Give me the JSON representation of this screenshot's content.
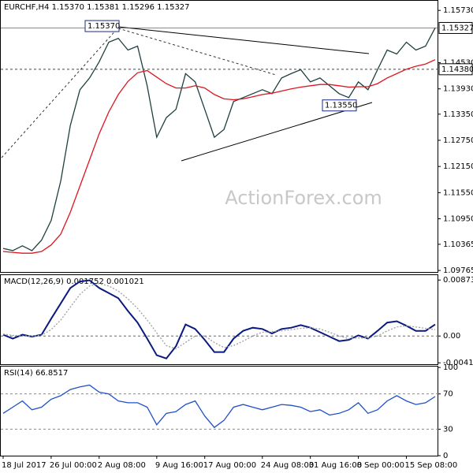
{
  "chart_data": [
    {
      "type": "line",
      "title": "EURCHF,H4 1.15370 1.15381 1.15296 1.15327",
      "watermark": "ActionForex.com",
      "ylim": [
        1.0973,
        1.1595
      ],
      "yticks": [
        {
          "value": 1.1573,
          "label": "1.15730"
        },
        {
          "value": 1.1453,
          "label": "1.14530"
        },
        {
          "value": 1.1393,
          "label": "1.13930"
        },
        {
          "value": 1.1335,
          "label": "1.13350"
        },
        {
          "value": 1.1275,
          "label": "1.12750"
        },
        {
          "value": 1.1215,
          "label": "1.12150"
        },
        {
          "value": 1.1155,
          "label": "1.11550"
        },
        {
          "value": 1.1095,
          "label": "1.10950"
        },
        {
          "value": 1.10365,
          "label": "1.10365"
        },
        {
          "value": 1.09765,
          "label": "1.09765"
        }
      ],
      "price_labels": [
        {
          "value": 1.15327,
          "label": "1.15327"
        },
        {
          "value": 1.1438,
          "label": "1.14380"
        }
      ],
      "annotations": [
        {
          "value": 1.1537,
          "label": "1.15370"
        },
        {
          "value": 1.1355,
          "label": "1.13550"
        }
      ],
      "series": [
        {
          "color": "#1f3f3f",
          "values": [
            1.1027,
            1.1022,
            1.1033,
            1.1022,
            1.1046,
            1.1091,
            1.1182,
            1.1309,
            1.1391,
            1.1418,
            1.1455,
            1.15,
            1.1509,
            1.1482,
            1.1491,
            1.14,
            1.1282,
            1.1327,
            1.1346,
            1.1428,
            1.1409,
            1.1346,
            1.1282,
            1.13,
            1.1364,
            1.1373,
            1.1382,
            1.1391,
            1.1382,
            1.1418,
            1.1428,
            1.1437,
            1.1409,
            1.1418,
            1.14,
            1.1382,
            1.1373,
            1.1409,
            1.1391,
            1.1437,
            1.1482,
            1.1473,
            1.15,
            1.1482,
            1.1491,
            1.1533
          ]
        },
        {
          "color": "#e0141e",
          "values": [
            1.102,
            1.1018,
            1.1016,
            1.1016,
            1.102,
            1.1035,
            1.106,
            1.111,
            1.117,
            1.123,
            1.129,
            1.134,
            1.138,
            1.141,
            1.143,
            1.1435,
            1.142,
            1.1405,
            1.1395,
            1.1395,
            1.14,
            1.1395,
            1.138,
            1.137,
            1.1368,
            1.137,
            1.1375,
            1.138,
            1.1383,
            1.1388,
            1.1393,
            1.1397,
            1.14,
            1.1403,
            1.1403,
            1.14,
            1.1397,
            1.1398,
            1.1398,
            1.1405,
            1.1418,
            1.1428,
            1.1438,
            1.1445,
            1.145,
            1.146
          ]
        }
      ]
    },
    {
      "type": "line",
      "title": "MACD(12,26,9) 0.001752 0.001021",
      "ylim": [
        -0.0044,
        0.0095
      ],
      "yticks": [
        0.008732,
        {
          "value": 0,
          "label": "0.00"
        },
        -0.004184
      ],
      "zero_line": 0,
      "series": [
        {
          "color": "#0a1a80",
          "values": [
            0.0002,
            -0.0004,
            0.0002,
            -0.0001,
            0.0002,
            0.0027,
            0.0051,
            0.0075,
            0.0085,
            0.0087,
            0.0075,
            0.0067,
            0.0059,
            0.0039,
            0.0021,
            -0.0004,
            -0.003,
            -0.0035,
            -0.0016,
            0.0018,
            0.0011,
            -0.0006,
            -0.0025,
            -0.0025,
            -0.0004,
            0.0008,
            0.0013,
            0.0011,
            0.0004,
            0.0011,
            0.0013,
            0.0017,
            0.0013,
            0.0006,
            -0.0001,
            -0.0008,
            -0.0006,
            0.0001,
            -0.0004,
            0.0008,
            0.0021,
            0.0023,
            0.0016,
            0.0008,
            0.0008,
            0.0018
          ]
        },
        {
          "color": "#a0a0a0",
          "dashed": true,
          "values": [
            0.0003,
            0.0001,
            0,
            0,
            0.0001,
            0.001,
            0.0025,
            0.0045,
            0.0065,
            0.0078,
            0.0082,
            0.0078,
            0.007,
            0.0058,
            0.0043,
            0.0025,
            0.0005,
            -0.0015,
            -0.002,
            -0.001,
            0,
            0,
            -0.001,
            -0.0018,
            -0.0015,
            -0.0008,
            0,
            0.0006,
            0.0007,
            0.0008,
            0.001,
            0.0012,
            0.0013,
            0.0011,
            0.0006,
            0,
            -0.0004,
            -0.0003,
            -0.0003,
            0,
            0.0008,
            0.0014,
            0.0016,
            0.0014,
            0.0012,
            0.001
          ]
        }
      ]
    },
    {
      "type": "line",
      "title": "RSI(14) 66.8517",
      "ylim": [
        0,
        101
      ],
      "yticks": [
        100,
        70,
        30,
        0
      ],
      "levels": [
        70,
        30
      ],
      "categories": [
        "18 Jul 2017",
        null,
        null,
        null,
        null,
        "26 Jul 00:00",
        null,
        null,
        null,
        null,
        "2 Aug 08:00",
        null,
        null,
        null,
        null,
        null,
        "9 Aug 16:00",
        null,
        null,
        null,
        null,
        "17 Aug 00:00",
        null,
        null,
        null,
        null,
        null,
        "24 Aug 08:00",
        null,
        null,
        null,
        null,
        "31 Aug 16:00",
        null,
        null,
        null,
        null,
        "8 Sep 00:00",
        null,
        null,
        null,
        null,
        "15 Sep 08:00",
        null,
        null,
        null
      ],
      "series": [
        {
          "color": "#1e50c8",
          "values": [
            48,
            55,
            62,
            52,
            55,
            64,
            68,
            75,
            78,
            80,
            72,
            70,
            62,
            60,
            60,
            55,
            35,
            48,
            50,
            58,
            62,
            45,
            32,
            40,
            55,
            58,
            55,
            52,
            55,
            58,
            57,
            55,
            50,
            52,
            46,
            48,
            52,
            60,
            48,
            52,
            62,
            68,
            62,
            58,
            60,
            67
          ]
        }
      ]
    }
  ]
}
